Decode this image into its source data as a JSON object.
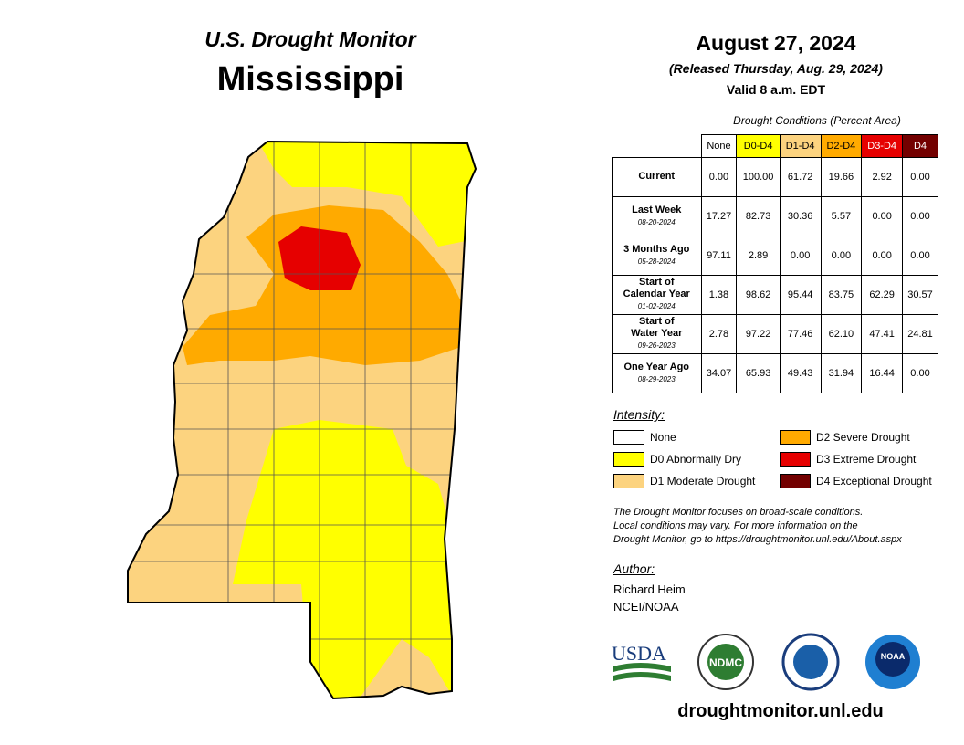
{
  "header": {
    "series": "U.S. Drought Monitor",
    "state": "Mississippi",
    "date": "August 27, 2024",
    "released": "(Released Thursday, Aug. 29, 2024)",
    "valid": "Valid 8 a.m. EDT"
  },
  "table": {
    "caption": "Drought Conditions (Percent Area)",
    "columns": [
      {
        "label": "None",
        "color": "#ffffff",
        "text": "#000000"
      },
      {
        "label": "D0-D4",
        "color": "#ffff00",
        "text": "#000000"
      },
      {
        "label": "D1-D4",
        "color": "#fcd37f",
        "text": "#000000"
      },
      {
        "label": "D2-D4",
        "color": "#ffaa00",
        "text": "#000000"
      },
      {
        "label": "D3-D4",
        "color": "#e60000",
        "text": "#ffffff"
      },
      {
        "label": "D4",
        "color": "#730000",
        "text": "#ffffff"
      }
    ],
    "rows": [
      {
        "label": [
          "Current"
        ],
        "cells": [
          "0.00",
          "100.00",
          "61.72",
          "19.66",
          "2.92",
          "0.00"
        ]
      },
      {
        "label": [
          "Last Week"
        ],
        "date": "08-20-2024",
        "cells": [
          "17.27",
          "82.73",
          "30.36",
          "5.57",
          "0.00",
          "0.00"
        ]
      },
      {
        "label": [
          "3 Months Ago"
        ],
        "date": "05-28-2024",
        "cells": [
          "97.11",
          "2.89",
          "0.00",
          "0.00",
          "0.00",
          "0.00"
        ]
      },
      {
        "label": [
          "Start of",
          "Calendar Year"
        ],
        "date": "01-02-2024",
        "cells": [
          "1.38",
          "98.62",
          "95.44",
          "83.75",
          "62.29",
          "30.57"
        ]
      },
      {
        "label": [
          "Start of",
          "Water Year"
        ],
        "date": "09-26-2023",
        "cells": [
          "2.78",
          "97.22",
          "77.46",
          "62.10",
          "47.41",
          "24.81"
        ]
      },
      {
        "label": [
          "One Year Ago"
        ],
        "date": "08-29-2023",
        "cells": [
          "34.07",
          "65.93",
          "49.43",
          "31.94",
          "16.44",
          "0.00"
        ]
      }
    ]
  },
  "legend": {
    "title": "Intensity:",
    "items": [
      {
        "label": "None",
        "color": "#ffffff"
      },
      {
        "label": "D0 Abnormally Dry",
        "color": "#ffff00"
      },
      {
        "label": "D1 Moderate Drought",
        "color": "#fcd37f"
      },
      {
        "label": "D2 Severe Drought",
        "color": "#ffaa00"
      },
      {
        "label": "D3 Extreme Drought",
        "color": "#e60000"
      },
      {
        "label": "D4 Exceptional Drought",
        "color": "#730000"
      }
    ]
  },
  "note": [
    "The Drought Monitor focuses on broad-scale conditions.",
    "Local conditions may vary. For more information on the",
    "Drought Monitor, go to https://droughtmonitor.unl.edu/About.aspx"
  ],
  "author": {
    "title": "Author:",
    "lines": [
      "Richard Heim",
      "NCEI/NOAA"
    ]
  },
  "logos": [
    "USDA",
    "NDMC",
    "NOAA"
  ],
  "url": "droughtmonitor.unl.edu"
}
